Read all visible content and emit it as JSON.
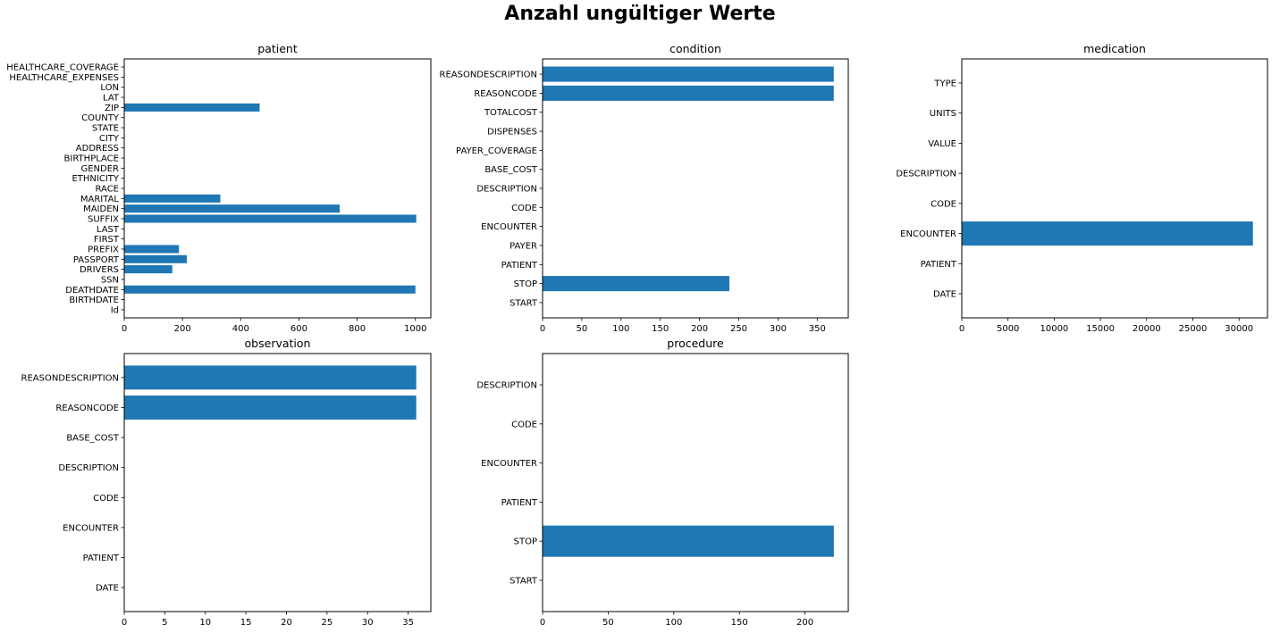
{
  "figure_title": "Anzahl ungültiger Werte",
  "colors": {
    "bar": "#1f77b4",
    "axis": "#000000",
    "background": "#ffffff"
  },
  "chart_data": [
    {
      "type": "bar",
      "orientation": "horizontal",
      "title": "patient",
      "xlabel": "",
      "ylabel": "",
      "categories": [
        "Id",
        "BIRTHDATE",
        "DEATHDATE",
        "SSN",
        "DRIVERS",
        "PASSPORT",
        "PREFIX",
        "FIRST",
        "LAST",
        "SUFFIX",
        "MAIDEN",
        "MARITAL",
        "RACE",
        "ETHNICITY",
        "GENDER",
        "BIRTHPLACE",
        "ADDRESS",
        "CITY",
        "STATE",
        "COUNTY",
        "ZIP",
        "LAT",
        "LON",
        "HEALTHCARE_EXPENSES",
        "HEALTHCARE_COVERAGE"
      ],
      "values": [
        0,
        0,
        1000,
        0,
        165,
        215,
        188,
        0,
        0,
        1003,
        740,
        330,
        0,
        0,
        0,
        0,
        0,
        0,
        0,
        0,
        465,
        0,
        0,
        0,
        0
      ],
      "xlim": [
        0,
        1053
      ],
      "xticks": [
        0,
        200,
        400,
        600,
        800,
        1000
      ],
      "grid": false
    },
    {
      "type": "bar",
      "orientation": "horizontal",
      "title": "condition",
      "xlabel": "",
      "ylabel": "",
      "categories": [
        "START",
        "STOP",
        "PATIENT",
        "PAYER",
        "ENCOUNTER",
        "CODE",
        "DESCRIPTION",
        "BASE_COST",
        "PAYER_COVERAGE",
        "DISPENSES",
        "TOTALCOST",
        "REASONCODE",
        "REASONDESCRIPTION"
      ],
      "values": [
        0,
        238,
        0,
        0,
        0,
        0,
        0,
        0,
        0,
        0,
        0,
        371,
        371
      ],
      "xlim": [
        0,
        389.5
      ],
      "xticks": [
        0,
        50,
        100,
        150,
        200,
        250,
        300,
        350
      ],
      "grid": false
    },
    {
      "type": "bar",
      "orientation": "horizontal",
      "title": "medication",
      "xlabel": "",
      "ylabel": "",
      "categories": [
        "DATE",
        "PATIENT",
        "ENCOUNTER",
        "CODE",
        "DESCRIPTION",
        "VALUE",
        "UNITS",
        "TYPE"
      ],
      "values": [
        0,
        0,
        31500,
        0,
        0,
        0,
        0,
        0
      ],
      "xlim": [
        0,
        33075
      ],
      "xticks": [
        0,
        5000,
        10000,
        15000,
        20000,
        25000,
        30000
      ],
      "grid": false
    },
    {
      "type": "bar",
      "orientation": "horizontal",
      "title": "observation",
      "xlabel": "",
      "ylabel": "",
      "categories": [
        "DATE",
        "PATIENT",
        "ENCOUNTER",
        "CODE",
        "DESCRIPTION",
        "BASE_COST",
        "REASONCODE",
        "REASONDESCRIPTION"
      ],
      "values": [
        0,
        0,
        0,
        0,
        0,
        0,
        36,
        36
      ],
      "xlim": [
        0,
        37.8
      ],
      "xticks": [
        0,
        5,
        10,
        15,
        20,
        25,
        30,
        35
      ],
      "grid": false
    },
    {
      "type": "bar",
      "orientation": "horizontal",
      "title": "procedure",
      "xlabel": "",
      "ylabel": "",
      "categories": [
        "START",
        "STOP",
        "PATIENT",
        "ENCOUNTER",
        "CODE",
        "DESCRIPTION"
      ],
      "values": [
        0,
        222,
        0,
        0,
        0,
        0
      ],
      "xlim": [
        0,
        233
      ],
      "xticks": [
        0,
        50,
        100,
        150,
        200
      ],
      "grid": false
    }
  ]
}
